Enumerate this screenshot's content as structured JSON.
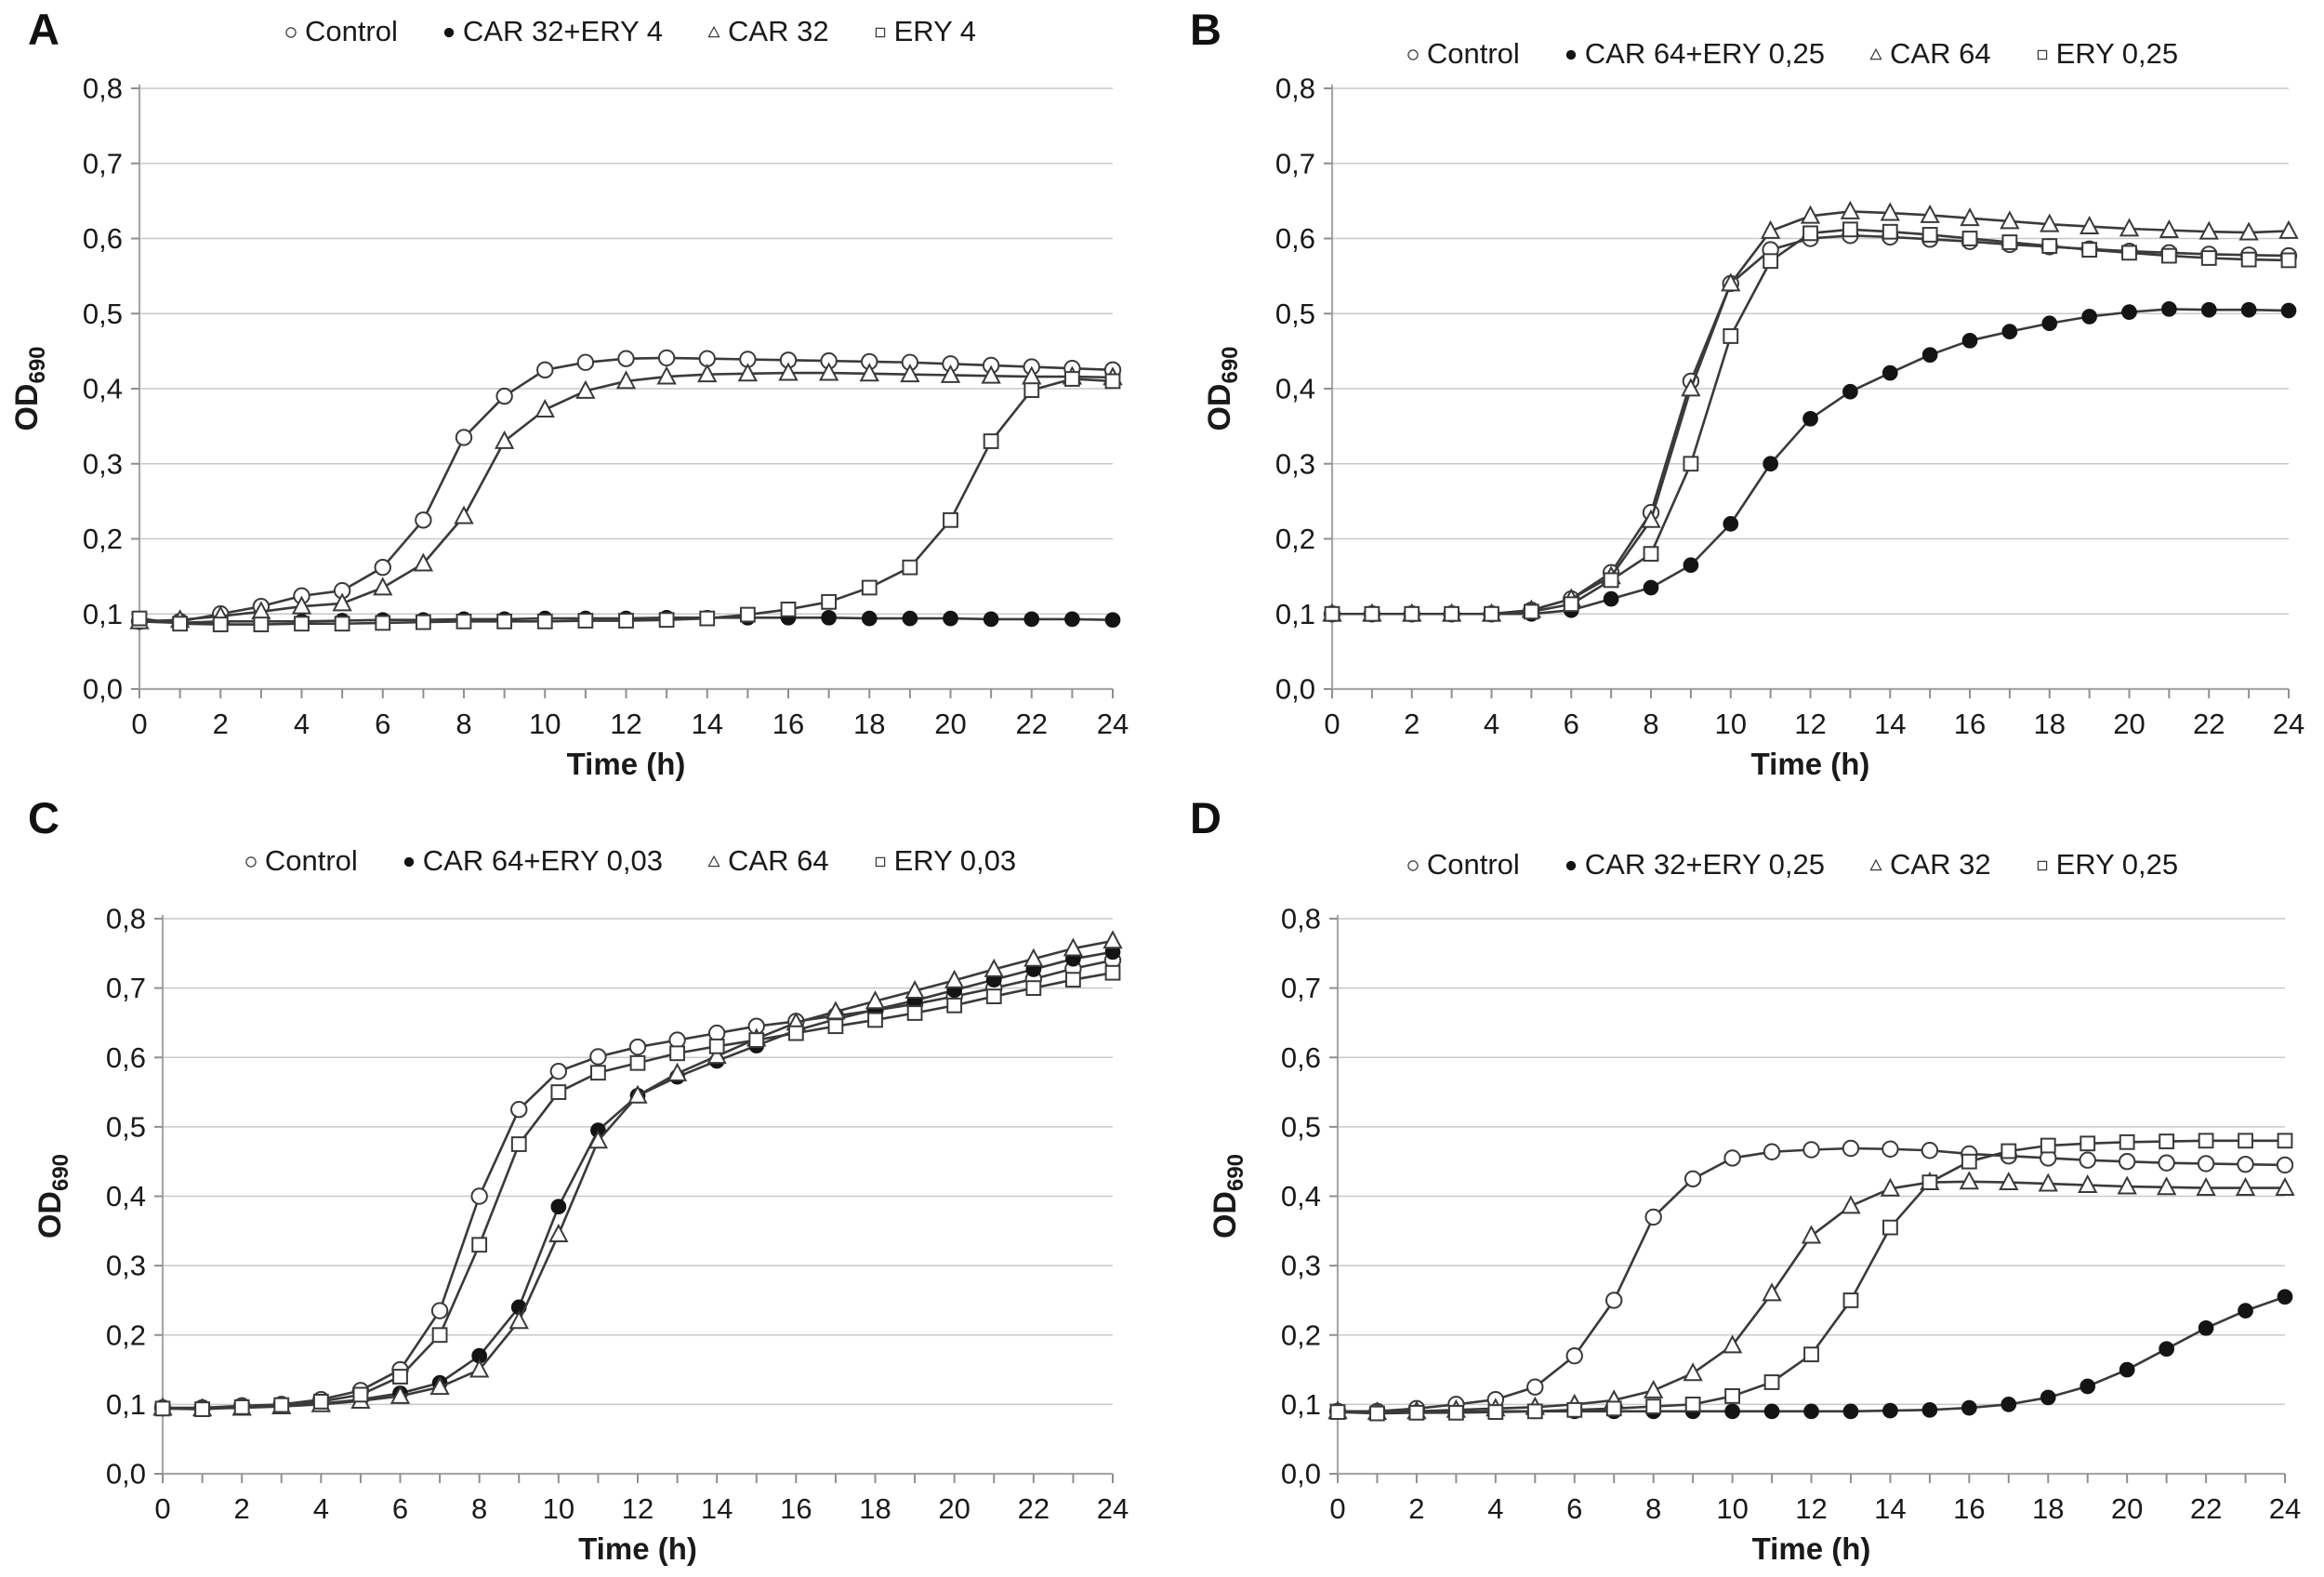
{
  "colors": {
    "line": "#3a3a3a",
    "marker_filled": "#141414",
    "marker_open_fill": "#ffffff",
    "grid": "#c9c9c9",
    "axis": "#a8a8a8",
    "tick": "#8f8f8f",
    "text": "#1a1a1a",
    "background": "#ffffff"
  },
  "chart_data": [
    {
      "type": "line",
      "panel": "A",
      "xlabel": "Time (h)",
      "ylabel": "OD",
      "ylabel_sub": "690",
      "legend_position": "top",
      "grid": true,
      "xlim": [
        0,
        24
      ],
      "ylim": [
        0,
        0.8
      ],
      "xticks": [
        "0",
        "2",
        "4",
        "6",
        "8",
        "10",
        "12",
        "14",
        "16",
        "18",
        "20",
        "22",
        "24"
      ],
      "yticks": [
        "0,0",
        "0,1",
        "0,2",
        "0,3",
        "0,4",
        "0,5",
        "0,6",
        "0,7",
        "0,8"
      ],
      "x": [
        0,
        1,
        2,
        3,
        4,
        5,
        6,
        7,
        8,
        9,
        10,
        11,
        12,
        13,
        14,
        15,
        16,
        17,
        18,
        19,
        20,
        21,
        22,
        23,
        24
      ],
      "series": [
        {
          "name": "Control",
          "marker": "circle-open",
          "values": [
            0.09,
            0.09,
            0.1,
            0.11,
            0.124,
            0.131,
            0.162,
            0.225,
            0.335,
            0.39,
            0.425,
            0.435,
            0.44,
            0.441,
            0.44,
            0.439,
            0.438,
            0.437,
            0.436,
            0.435,
            0.433,
            0.431,
            0.429,
            0.427,
            0.425
          ]
        },
        {
          "name": "CAR 32+ERY 4",
          "marker": "circle-filled",
          "values": [
            0.09,
            0.088,
            0.09,
            0.09,
            0.09,
            0.091,
            0.092,
            0.092,
            0.093,
            0.093,
            0.094,
            0.094,
            0.094,
            0.095,
            0.095,
            0.095,
            0.095,
            0.095,
            0.094,
            0.094,
            0.094,
            0.093,
            0.093,
            0.093,
            0.092
          ]
        },
        {
          "name": "CAR 32",
          "marker": "triangle-open",
          "values": [
            0.09,
            0.092,
            0.097,
            0.103,
            0.11,
            0.114,
            0.135,
            0.167,
            0.23,
            0.33,
            0.372,
            0.397,
            0.41,
            0.416,
            0.419,
            0.42,
            0.421,
            0.421,
            0.42,
            0.419,
            0.418,
            0.417,
            0.416,
            0.416,
            0.415
          ]
        },
        {
          "name": "ERY 4",
          "marker": "square-open",
          "values": [
            0.094,
            0.087,
            0.086,
            0.086,
            0.087,
            0.087,
            0.088,
            0.089,
            0.09,
            0.09,
            0.09,
            0.091,
            0.091,
            0.092,
            0.094,
            0.099,
            0.106,
            0.116,
            0.135,
            0.162,
            0.225,
            0.33,
            0.398,
            0.413,
            0.41
          ]
        }
      ]
    },
    {
      "type": "line",
      "panel": "B",
      "xlabel": "Time (h)",
      "ylabel": "OD",
      "ylabel_sub": "690",
      "legend_position": "top",
      "grid": true,
      "xlim": [
        0,
        24
      ],
      "ylim": [
        0,
        0.8
      ],
      "xticks": [
        "0",
        "2",
        "4",
        "6",
        "8",
        "10",
        "12",
        "14",
        "16",
        "18",
        "20",
        "22",
        "24"
      ],
      "yticks": [
        "0,0",
        "0,1",
        "0,2",
        "0,3",
        "0,4",
        "0,5",
        "0,6",
        "0,7",
        "0,8"
      ],
      "x": [
        0,
        1,
        2,
        3,
        4,
        5,
        6,
        7,
        8,
        9,
        10,
        11,
        12,
        13,
        14,
        15,
        16,
        17,
        18,
        19,
        20,
        21,
        22,
        23,
        24
      ],
      "series": [
        {
          "name": "Control",
          "marker": "circle-open",
          "values": [
            0.1,
            0.1,
            0.1,
            0.1,
            0.1,
            0.105,
            0.12,
            0.155,
            0.235,
            0.41,
            0.54,
            0.585,
            0.6,
            0.604,
            0.602,
            0.599,
            0.596,
            0.592,
            0.589,
            0.586,
            0.583,
            0.581,
            0.579,
            0.578,
            0.577
          ]
        },
        {
          "name": "CAR 64+ERY 0,25",
          "marker": "circle-filled",
          "values": [
            0.1,
            0.1,
            0.1,
            0.1,
            0.1,
            0.1,
            0.105,
            0.12,
            0.135,
            0.165,
            0.22,
            0.3,
            0.36,
            0.396,
            0.421,
            0.445,
            0.464,
            0.476,
            0.487,
            0.496,
            0.502,
            0.506,
            0.505,
            0.505,
            0.504
          ]
        },
        {
          "name": "CAR 64",
          "marker": "triangle-open",
          "values": [
            0.1,
            0.1,
            0.1,
            0.1,
            0.1,
            0.105,
            0.12,
            0.15,
            0.225,
            0.4,
            0.54,
            0.61,
            0.63,
            0.636,
            0.634,
            0.631,
            0.627,
            0.623,
            0.619,
            0.616,
            0.613,
            0.611,
            0.609,
            0.608,
            0.61
          ]
        },
        {
          "name": "ERY 0,25",
          "marker": "square-open",
          "values": [
            0.1,
            0.1,
            0.1,
            0.1,
            0.1,
            0.103,
            0.113,
            0.145,
            0.18,
            0.3,
            0.47,
            0.57,
            0.607,
            0.612,
            0.609,
            0.605,
            0.6,
            0.595,
            0.59,
            0.585,
            0.581,
            0.577,
            0.574,
            0.572,
            0.571
          ]
        }
      ]
    },
    {
      "type": "line",
      "panel": "C",
      "xlabel": "Time (h)",
      "ylabel": "OD",
      "ylabel_sub": "690",
      "legend_position": "top",
      "grid": true,
      "xlim": [
        0,
        24
      ],
      "ylim": [
        0,
        0.8
      ],
      "xticks": [
        "0",
        "2",
        "4",
        "6",
        "8",
        "10",
        "12",
        "14",
        "16",
        "18",
        "20",
        "22",
        "24"
      ],
      "yticks": [
        "0,0",
        "0,1",
        "0,2",
        "0,3",
        "0,4",
        "0,5",
        "0,6",
        "0,7",
        "0,8"
      ],
      "x": [
        0,
        1,
        2,
        3,
        4,
        5,
        6,
        7,
        8,
        9,
        10,
        11,
        12,
        13,
        14,
        15,
        16,
        17,
        18,
        19,
        20,
        21,
        22,
        23,
        24
      ],
      "series": [
        {
          "name": "Control",
          "marker": "circle-open",
          "values": [
            0.095,
            0.095,
            0.098,
            0.1,
            0.107,
            0.12,
            0.15,
            0.235,
            0.4,
            0.525,
            0.58,
            0.601,
            0.615,
            0.625,
            0.635,
            0.645,
            0.652,
            0.66,
            0.668,
            0.677,
            0.688,
            0.7,
            0.713,
            0.728,
            0.74
          ]
        },
        {
          "name": "CAR 64+ERY 0,03",
          "marker": "circle-filled",
          "values": [
            0.095,
            0.094,
            0.096,
            0.098,
            0.101,
            0.107,
            0.116,
            0.131,
            0.17,
            0.24,
            0.385,
            0.495,
            0.545,
            0.572,
            0.595,
            0.617,
            0.639,
            0.655,
            0.669,
            0.682,
            0.697,
            0.712,
            0.727,
            0.742,
            0.752
          ]
        },
        {
          "name": "CAR 64",
          "marker": "triangle-open",
          "values": [
            0.095,
            0.094,
            0.095,
            0.097,
            0.1,
            0.105,
            0.112,
            0.125,
            0.15,
            0.22,
            0.345,
            0.48,
            0.545,
            0.577,
            0.602,
            0.627,
            0.65,
            0.666,
            0.681,
            0.696,
            0.711,
            0.727,
            0.742,
            0.757,
            0.768
          ]
        },
        {
          "name": "ERY 0,03",
          "marker": "square-open",
          "values": [
            0.094,
            0.093,
            0.096,
            0.099,
            0.104,
            0.114,
            0.14,
            0.2,
            0.33,
            0.475,
            0.55,
            0.578,
            0.592,
            0.606,
            0.616,
            0.625,
            0.635,
            0.645,
            0.654,
            0.664,
            0.675,
            0.688,
            0.7,
            0.712,
            0.722
          ]
        }
      ]
    },
    {
      "type": "line",
      "panel": "D",
      "xlabel": "Time (h)",
      "ylabel": "OD",
      "ylabel_sub": "690",
      "legend_position": "top",
      "grid": true,
      "xlim": [
        0,
        24
      ],
      "ylim": [
        0,
        0.8
      ],
      "xticks": [
        "0",
        "2",
        "4",
        "6",
        "8",
        "10",
        "12",
        "14",
        "16",
        "18",
        "20",
        "22",
        "24"
      ],
      "yticks": [
        "0,0",
        "0,1",
        "0,2",
        "0,3",
        "0,4",
        "0,5",
        "0,6",
        "0,7",
        "0,8"
      ],
      "x": [
        0,
        1,
        2,
        3,
        4,
        5,
        6,
        7,
        8,
        9,
        10,
        11,
        12,
        13,
        14,
        15,
        16,
        17,
        18,
        19,
        20,
        21,
        22,
        23,
        24
      ],
      "series": [
        {
          "name": "Control",
          "marker": "circle-open",
          "values": [
            0.09,
            0.09,
            0.094,
            0.1,
            0.107,
            0.125,
            0.17,
            0.25,
            0.37,
            0.425,
            0.455,
            0.464,
            0.467,
            0.469,
            0.468,
            0.466,
            0.461,
            0.458,
            0.455,
            0.452,
            0.45,
            0.448,
            0.447,
            0.446,
            0.445
          ]
        },
        {
          "name": "CAR 32+ERY 0,25",
          "marker": "circle-filled",
          "values": [
            0.09,
            0.088,
            0.089,
            0.089,
            0.09,
            0.09,
            0.09,
            0.09,
            0.09,
            0.09,
            0.09,
            0.09,
            0.09,
            0.09,
            0.091,
            0.092,
            0.095,
            0.1,
            0.11,
            0.126,
            0.15,
            0.18,
            0.21,
            0.235,
            0.255
          ]
        },
        {
          "name": "CAR 32",
          "marker": "triangle-open",
          "values": [
            0.09,
            0.089,
            0.09,
            0.092,
            0.094,
            0.096,
            0.1,
            0.106,
            0.12,
            0.145,
            0.185,
            0.26,
            0.343,
            0.386,
            0.411,
            0.42,
            0.421,
            0.42,
            0.418,
            0.416,
            0.414,
            0.413,
            0.412,
            0.412,
            0.412
          ]
        },
        {
          "name": "ERY 0,25",
          "marker": "square-open",
          "values": [
            0.089,
            0.087,
            0.088,
            0.088,
            0.089,
            0.09,
            0.092,
            0.094,
            0.097,
            0.1,
            0.112,
            0.132,
            0.172,
            0.25,
            0.355,
            0.42,
            0.45,
            0.465,
            0.473,
            0.476,
            0.478,
            0.479,
            0.48,
            0.48,
            0.48
          ]
        }
      ]
    }
  ]
}
